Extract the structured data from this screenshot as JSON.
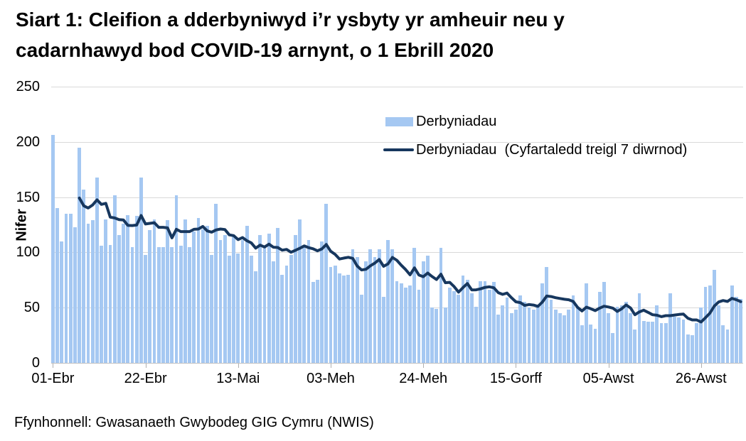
{
  "title": "Siart 1: Cleifion a dderbyniwyd i’r ysbyty yr amheuir neu y\ncadarnhawyd bod COVID-19 arnynt, o 1 Ebrill 2020",
  "footer": "Ffynhonnell: Gwasanaeth Gwybodeg GIG Cymru (NWIS)",
  "legend": {
    "bars_label": "Derbyniadau",
    "line_label": "Derbyniadau  (Cyfartaledd treigl 7 diwrnod)"
  },
  "colors": {
    "bars": "#a5c8f2",
    "line": "#17375e",
    "gridline": "#d9d9d9",
    "axis": "#c0c0c0",
    "text": "#000000"
  },
  "chart_data": {
    "type": "bar",
    "title": "Siart 1: Cleifion a dderbyniwyd i’r ysbyty yr amheuir neu y cadarnhawyd bod COVID-19 arnynt, o 1 Ebrill 2020",
    "xlabel": "",
    "ylabel": "Nifer",
    "ylim": [
      0,
      250
    ],
    "yticks": [
      0,
      50,
      100,
      150,
      200,
      250
    ],
    "grid": "horizontal",
    "legend_position": "inside-top-right",
    "x_start_label": "01-Ebr",
    "xticks": [
      {
        "label": "01-Ebr",
        "day": 0
      },
      {
        "label": "22-Ebr",
        "day": 21
      },
      {
        "label": "13-Mai",
        "day": 42
      },
      {
        "label": "03-Meh",
        "day": 63
      },
      {
        "label": "24-Meh",
        "day": 84
      },
      {
        "label": "15-Gorff",
        "day": 105
      },
      {
        "label": "05-Awst",
        "day": 126
      },
      {
        "label": "26-Awst",
        "day": 147
      }
    ],
    "series": [
      {
        "name": "Derbyniadau",
        "type": "bar",
        "values": [
          206,
          140,
          110,
          135,
          135,
          123,
          195,
          157,
          126,
          129,
          168,
          106,
          130,
          107,
          152,
          116,
          126,
          134,
          105,
          133,
          168,
          98,
          120,
          130,
          105,
          105,
          129,
          105,
          152,
          106,
          130,
          105,
          119,
          131,
          121,
          124,
          98,
          144,
          111,
          116,
          97,
          116,
          99,
          111,
          124,
          97,
          83,
          116,
          104,
          117,
          92,
          122,
          80,
          88,
          98,
          116,
          130,
          107,
          111,
          73,
          75,
          110,
          144,
          87,
          88,
          81,
          79,
          80,
          103,
          96,
          62,
          92,
          103,
          96,
          103,
          60,
          111,
          103,
          74,
          72,
          68,
          70,
          104,
          66,
          92,
          97,
          50,
          49,
          104,
          50,
          68,
          65,
          62,
          79,
          75,
          63,
          51,
          74,
          74,
          66,
          73,
          44,
          52,
          59,
          45,
          48,
          61,
          55,
          50,
          48,
          51,
          72,
          87,
          57,
          48,
          45,
          43,
          48,
          61,
          50,
          34,
          72,
          35,
          31,
          64,
          73,
          45,
          27,
          51,
          52,
          55,
          45,
          30,
          63,
          38,
          37,
          37,
          52,
          36,
          36,
          63,
          42,
          41,
          39,
          26,
          25,
          36,
          50,
          69,
          70,
          84,
          52,
          34,
          30,
          70,
          60,
          58
        ]
      },
      {
        "name": "Derbyniadau  (Cyfartaledd treigl 7 diwrnod)",
        "type": "line",
        "derived": "trailing-7-day-average-of-bar-series",
        "window": 7,
        "starts_at_index": 6
      }
    ]
  }
}
